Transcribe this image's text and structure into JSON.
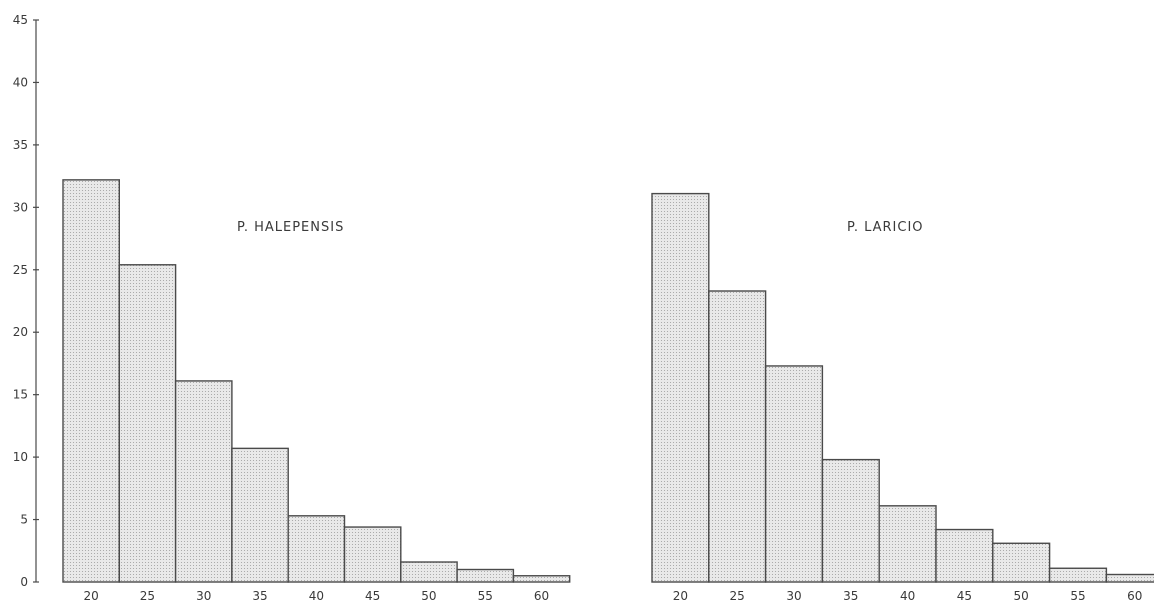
{
  "chart_data": [
    {
      "type": "bar",
      "title": "P. HALEPENSIS",
      "xlabel": "",
      "ylabel": "",
      "categories": [
        "20",
        "25",
        "30",
        "35",
        "40",
        "45",
        "50",
        "55",
        "60"
      ],
      "values": [
        32.2,
        25.4,
        16.1,
        10.7,
        5.3,
        4.4,
        1.6,
        1.0,
        0.5
      ],
      "ylim": [
        0,
        45
      ],
      "yticks": [
        "0",
        "5",
        "10",
        "15",
        "20",
        "25",
        "30",
        "35",
        "40",
        "45"
      ],
      "grid": false
    },
    {
      "type": "bar",
      "title": "P. LARICIO",
      "xlabel": "",
      "ylabel": "",
      "categories": [
        "20",
        "25",
        "30",
        "35",
        "40",
        "45",
        "50",
        "55",
        "60"
      ],
      "values": [
        31.1,
        23.3,
        17.3,
        9.8,
        6.1,
        4.2,
        3.1,
        1.1,
        0.6
      ],
      "ylim": [
        0,
        45
      ],
      "grid": false
    }
  ]
}
